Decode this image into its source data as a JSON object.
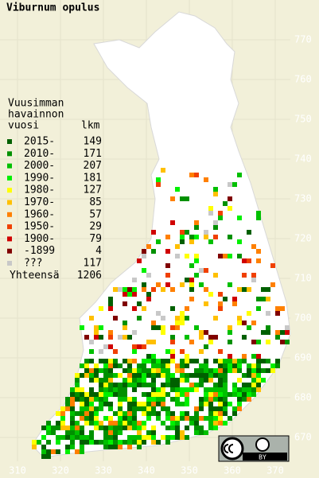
{
  "title": "Viburnum opulus",
  "legend": {
    "heading": [
      "Vuusimman",
      "havainnon",
      "vuosi"
    ],
    "count_heading": "lkm",
    "rows": [
      {
        "label": "2015-",
        "count": 149,
        "color": "#006000"
      },
      {
        "label": "2010-",
        "count": 171,
        "color": "#009000"
      },
      {
        "label": "2000-",
        "count": 207,
        "color": "#00c000"
      },
      {
        "label": "1990-",
        "count": 181,
        "color": "#00f000"
      },
      {
        "label": "1980-",
        "count": 127,
        "color": "#ffff00"
      },
      {
        "label": "1970-",
        "count": 85,
        "color": "#ffc000"
      },
      {
        "label": "1960-",
        "count": 57,
        "color": "#ff8000"
      },
      {
        "label": "1950-",
        "count": 29,
        "color": "#f04000"
      },
      {
        "label": "1900-",
        "count": 79,
        "color": "#d00000"
      },
      {
        "label": "-1899",
        "count": 4,
        "color": "#800000"
      },
      {
        "label": "???",
        "count": 117,
        "color": "#c8c8c8"
      }
    ],
    "total_label": "Yhteensä",
    "total": 1206
  },
  "xticks": [
    310,
    320,
    330,
    340,
    350,
    360,
    370
  ],
  "yticks": [
    670,
    680,
    690,
    700,
    710,
    720,
    730,
    740,
    750,
    760,
    770
  ],
  "license": {
    "label": "BY"
  }
}
